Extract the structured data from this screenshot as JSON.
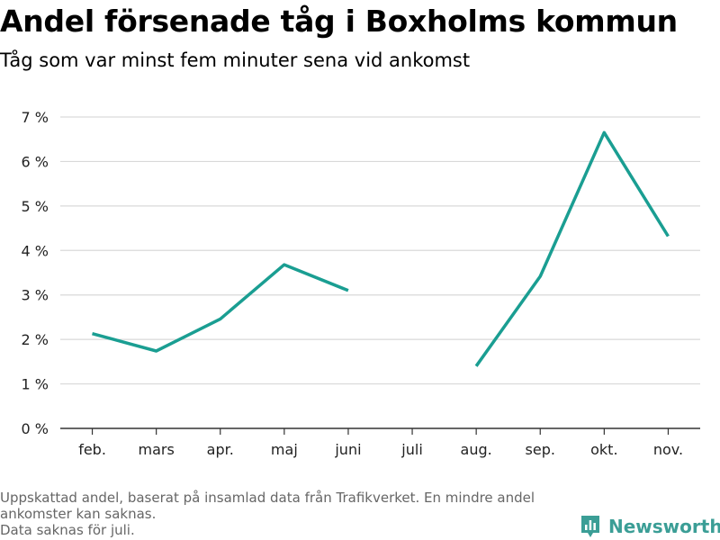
{
  "title": "Andel försenade tåg i Boxholms kommun",
  "subtitle": "Tåg som var minst fem minuter sena vid ankomst",
  "footnote": {
    "line1": "Uppskattad andel, baserat på insamlad data från Trafikverket. En mindre andel ankomster kan saknas.",
    "line2": "Data saknas för juli."
  },
  "brand": {
    "name": "Newsworthy",
    "color": "#3b9e96",
    "icon": "bar-chart-speech-bubble-icon"
  },
  "colors": {
    "line": "#1a9e92",
    "grid": "#d9d9d9",
    "axis": "#333333",
    "tick_text": "#222222"
  },
  "chart_data": {
    "type": "line",
    "categories": [
      "feb.",
      "mars",
      "apr.",
      "maj",
      "juni",
      "juli",
      "aug.",
      "sep.",
      "okt.",
      "nov."
    ],
    "series": [
      {
        "values": [
          2.13,
          1.74,
          2.46,
          3.68,
          3.1,
          null,
          1.4,
          3.42,
          6.65,
          4.32
        ]
      }
    ],
    "y_ticks": [
      0,
      1,
      2,
      3,
      4,
      5,
      6,
      7
    ],
    "y_tick_labels": [
      "0 %",
      "1 %",
      "2 %",
      "3 %",
      "4 %",
      "5 %",
      "6 %",
      "7 %"
    ],
    "ylim": [
      0,
      7
    ],
    "grid": true,
    "legend": "none"
  }
}
